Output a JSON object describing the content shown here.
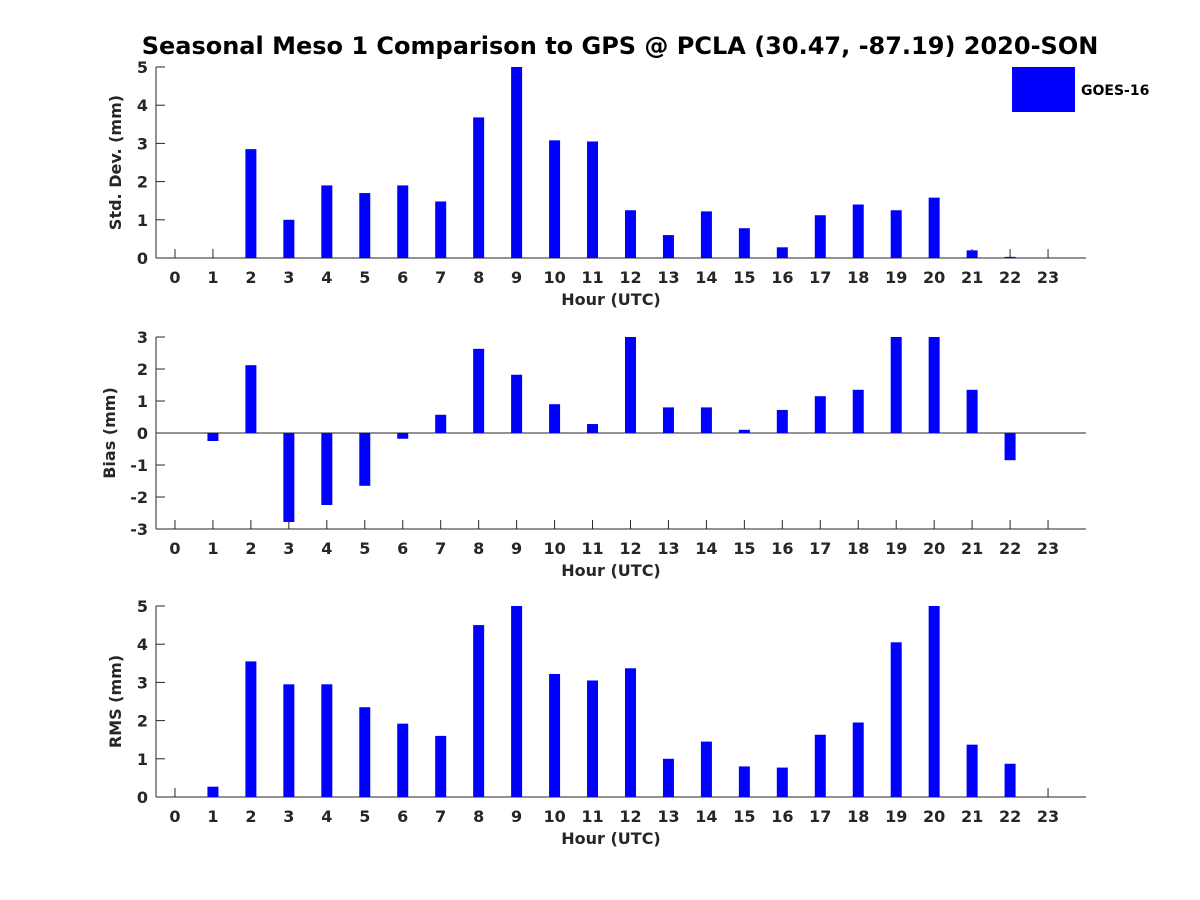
{
  "chart_data": {
    "title": "Seasonal Meso 1 Comparison to GPS @ PCLA (30.47, -87.19) 2020-SON",
    "type": "bar",
    "legend": {
      "entries": [
        "GOES-16"
      ],
      "placement": "top-right"
    },
    "series_color": "#0000ff",
    "categories": [
      "0",
      "1",
      "2",
      "3",
      "4",
      "5",
      "6",
      "7",
      "8",
      "9",
      "10",
      "11",
      "12",
      "13",
      "14",
      "15",
      "16",
      "17",
      "18",
      "19",
      "20",
      "21",
      "22",
      "23"
    ],
    "panels": [
      {
        "id": "std",
        "xlabel": "Hour (UTC)",
        "ylabel": "Std. Dev. (mm)",
        "ylim": [
          0,
          5
        ],
        "yticks": [
          "0",
          "1",
          "2",
          "3",
          "4",
          "5"
        ],
        "values": [
          null,
          null,
          2.85,
          1.0,
          1.9,
          1.7,
          1.9,
          1.48,
          3.68,
          5.0,
          3.08,
          3.05,
          1.25,
          0.6,
          1.22,
          0.78,
          0.28,
          1.12,
          1.4,
          1.25,
          1.58,
          0.2,
          0.03,
          null
        ]
      },
      {
        "id": "bias",
        "xlabel": "Hour (UTC)",
        "ylabel": "Bias (mm)",
        "ylim": [
          -3,
          3
        ],
        "yticks": [
          "-3",
          "-2",
          "-1",
          "0",
          "1",
          "2",
          "3"
        ],
        "values": [
          null,
          -0.25,
          2.12,
          -2.78,
          -2.25,
          -1.65,
          -0.18,
          0.57,
          2.63,
          1.82,
          0.9,
          0.28,
          3.0,
          0.8,
          0.8,
          0.1,
          0.72,
          1.15,
          1.35,
          3.0,
          3.0,
          1.35,
          -0.85,
          null
        ]
      },
      {
        "id": "rms",
        "xlabel": "Hour (UTC)",
        "ylabel": "RMS (mm)",
        "ylim": [
          0,
          5
        ],
        "yticks": [
          "0",
          "1",
          "2",
          "3",
          "4",
          "5"
        ],
        "values": [
          null,
          0.27,
          3.55,
          2.95,
          2.95,
          2.35,
          1.92,
          1.6,
          4.5,
          5.0,
          3.22,
          3.05,
          3.37,
          1.0,
          1.45,
          0.8,
          0.77,
          1.63,
          1.95,
          4.05,
          5.0,
          1.37,
          0.87,
          null
        ]
      }
    ]
  }
}
